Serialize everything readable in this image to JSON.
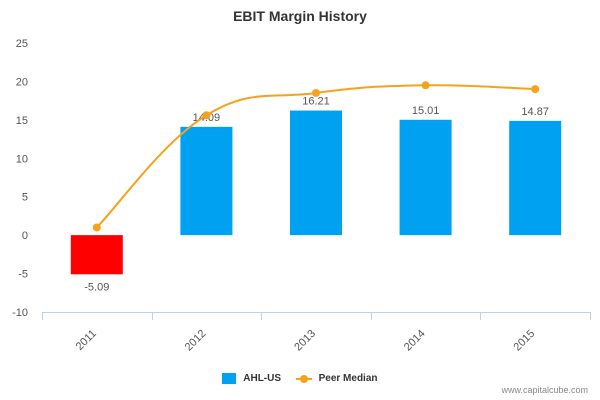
{
  "title": "EBIT Margin History",
  "credit": "www.capitalcube.com",
  "colors": {
    "bar": "#00A1F1",
    "bar_negative": "#FF0000",
    "line": "#F6A21B",
    "axis": "#999999",
    "grid": "#C0D0E0",
    "label": "#555555"
  },
  "chart_data": {
    "type": "bar",
    "title": "EBIT Margin History",
    "categories": [
      "2011",
      "2012",
      "2013",
      "2014",
      "2015"
    ],
    "series": [
      {
        "name": "AHL-US",
        "type": "bar",
        "values": [
          -5.09,
          14.09,
          16.21,
          15.01,
          14.87
        ]
      },
      {
        "name": "Peer Median",
        "type": "line",
        "values": [
          1.0,
          15.6,
          18.5,
          19.5,
          19.0
        ]
      }
    ],
    "data_labels": [
      "-5.09",
      "14.09",
      "16.21",
      "15.01",
      "14.87"
    ],
    "yticks": [
      25,
      20,
      15,
      10,
      5,
      0,
      -5,
      -10
    ],
    "ytick_labels": [
      "25",
      "20",
      "15",
      "10",
      "5",
      "0",
      "-5",
      "-10"
    ],
    "ylim": [
      -10,
      25
    ],
    "xlabel": "",
    "ylabel": "",
    "legend": [
      {
        "label": "AHL-US",
        "kind": "bar"
      },
      {
        "label": "Peer Median",
        "kind": "line"
      }
    ],
    "legend_position": "bottom"
  }
}
